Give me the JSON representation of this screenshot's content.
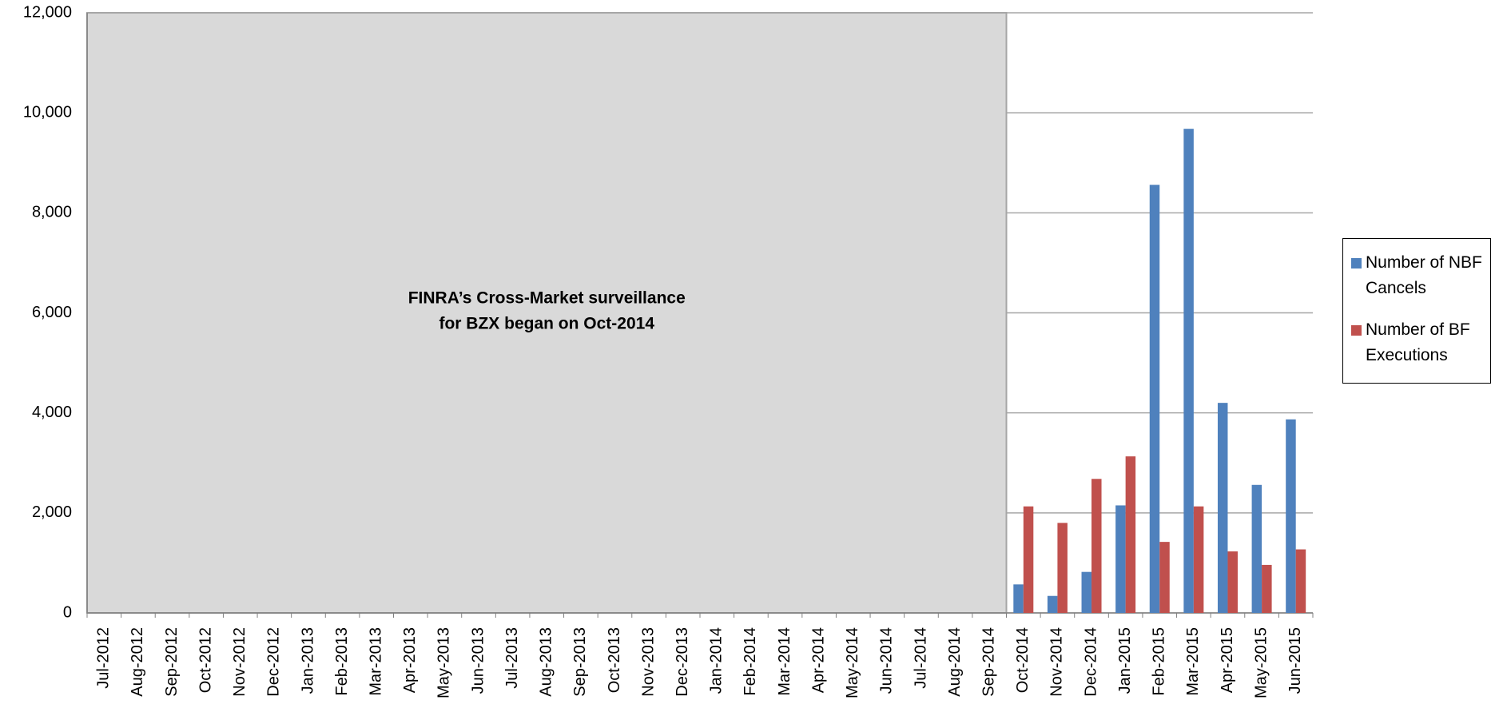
{
  "chart_data": {
    "type": "bar",
    "categories": [
      "Jul-2012",
      "Aug-2012",
      "Sep-2012",
      "Oct-2012",
      "Nov-2012",
      "Dec-2012",
      "Jan-2013",
      "Feb-2013",
      "Mar-2013",
      "Apr-2013",
      "May-2013",
      "Jun-2013",
      "Jul-2013",
      "Aug-2013",
      "Sep-2013",
      "Oct-2013",
      "Nov-2013",
      "Dec-2013",
      "Jan-2014",
      "Feb-2014",
      "Mar-2014",
      "Apr-2014",
      "May-2014",
      "Jun-2014",
      "Jul-2014",
      "Aug-2014",
      "Sep-2014",
      "Oct-2014",
      "Nov-2014",
      "Dec-2014",
      "Jan-2015",
      "Feb-2015",
      "Mar-2015",
      "Apr-2015",
      "May-2015",
      "Jun-2015"
    ],
    "series": [
      {
        "name": "Number of NBF Cancels",
        "color": "#4f81bd",
        "values": [
          null,
          null,
          null,
          null,
          null,
          null,
          null,
          null,
          null,
          null,
          null,
          null,
          null,
          null,
          null,
          null,
          null,
          null,
          null,
          null,
          null,
          null,
          null,
          null,
          null,
          null,
          null,
          570,
          340,
          820,
          2150,
          8560,
          9680,
          4200,
          2560,
          3870
        ]
      },
      {
        "name": "Number of BF Executions",
        "color": "#c0504d",
        "values": [
          null,
          null,
          null,
          null,
          null,
          null,
          null,
          null,
          null,
          null,
          null,
          null,
          null,
          null,
          null,
          null,
          null,
          null,
          null,
          null,
          null,
          null,
          null,
          null,
          null,
          null,
          null,
          2130,
          1800,
          2680,
          3130,
          1420,
          2130,
          1230,
          960,
          1270
        ]
      }
    ],
    "ylim": [
      0,
      12000
    ],
    "yticks": [
      0,
      {
        "value": 2000,
        "label": "2,000"
      },
      {
        "value": 4000,
        "label": "4,000"
      },
      {
        "value": 6000,
        "label": "6,000"
      },
      {
        "value": 8000,
        "label": "8,000"
      },
      {
        "value": 10000,
        "label": "10,000"
      },
      {
        "value": 12000,
        "label": "12,000"
      }
    ],
    "grid": true,
    "legend": "right",
    "shade": {
      "from": "Jul-2012",
      "to": "Sep-2014",
      "color": "#d9d9d9"
    },
    "annotation": [
      "FINRA’s Cross-Market  surveillance",
      "for BZX began on  Oct-2014"
    ]
  }
}
